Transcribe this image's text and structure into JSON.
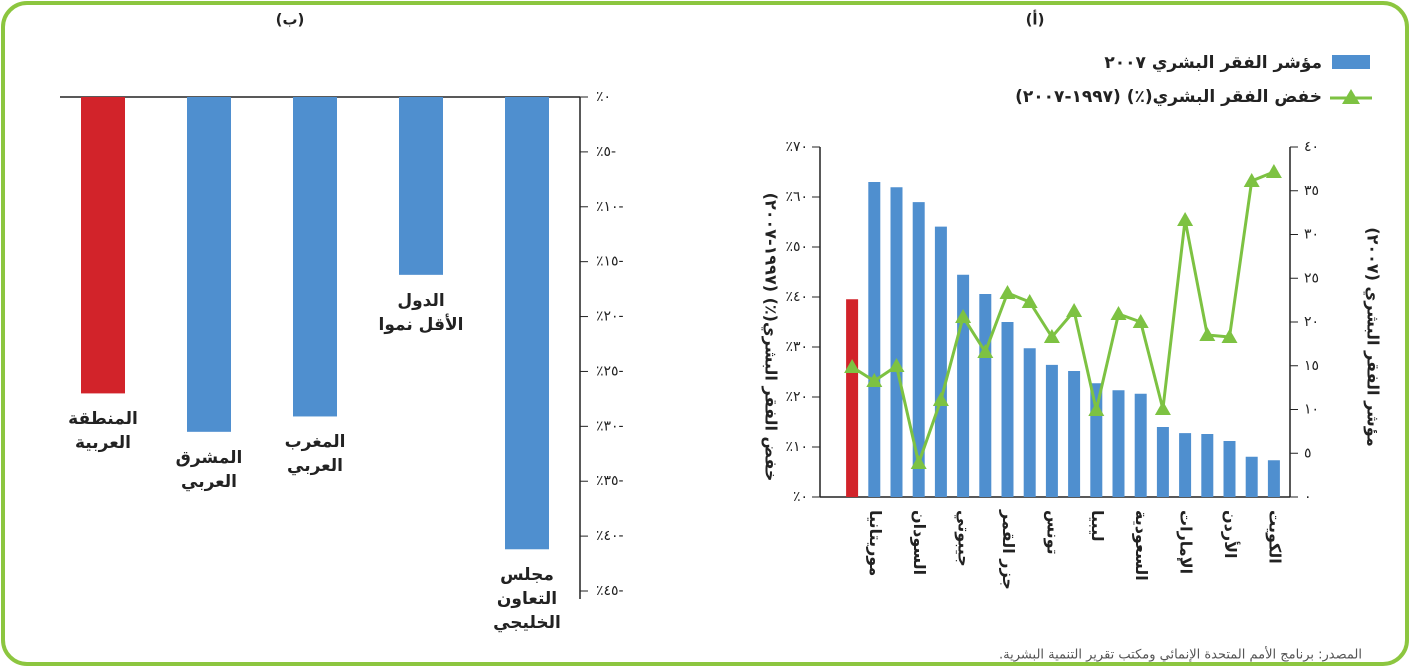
{
  "chart_data": [
    {
      "type": "bar",
      "label": "(ب)",
      "categories": [
        "المنطقة العربية",
        "المشرق العربي",
        "المغرب العربي",
        "الدول الأقل نموا",
        "مجلس التعاون الخليجي"
      ],
      "values": [
        -27,
        -30.5,
        -29.1,
        -16.2,
        -41.2
      ],
      "colors": [
        "#d2232a",
        "#4f8fcf",
        "#4f8fcf",
        "#4f8fcf",
        "#4f8fcf"
      ],
      "ylim": [
        -45,
        0
      ],
      "yticks": [
        {
          "value": 0,
          "label": "٪٠"
        },
        {
          "value": -5,
          "label": "٪٥-"
        },
        {
          "value": -10,
          "label": "٪١٠-"
        },
        {
          "value": -15,
          "label": "٪١٥-"
        },
        {
          "value": -20,
          "label": "٪٢٠-"
        },
        {
          "value": -25,
          "label": "٪٢٥-"
        },
        {
          "value": -30,
          "label": "٪٣٠-"
        },
        {
          "value": -35,
          "label": "٪٣٥-"
        },
        {
          "value": -40,
          "label": "٪٤٠-"
        },
        {
          "value": -45,
          "label": "٪٤٥-"
        }
      ]
    },
    {
      "type": "combo",
      "label": "(أ)",
      "categories": [
        null,
        "موريتانيا",
        null,
        "السودان",
        null,
        "جيبوتي",
        null,
        "جزر القمر",
        null,
        "تونس",
        null,
        "ليبيا",
        null,
        "السعودية",
        null,
        "الإمارات",
        null,
        "الأردن",
        null,
        "الكويت"
      ],
      "y_label": "خفض الفقر البشري(٪) (١٩٩٧-٢٠٠٧)",
      "y2_label": "مؤشر الفقر البشري (٢٠٠٧)",
      "ylim": [
        0,
        70
      ],
      "yticks": [
        {
          "value": 0,
          "label": "٪٠"
        },
        {
          "value": 10,
          "label": "٪١٠"
        },
        {
          "value": 20,
          "label": "٪٢٠"
        },
        {
          "value": 30,
          "label": "٪٣٠"
        },
        {
          "value": 40,
          "label": "٪٤٠"
        },
        {
          "value": 50,
          "label": "٪٥٠"
        },
        {
          "value": 60,
          "label": "٪٦٠"
        },
        {
          "value": 70,
          "label": "٪٧٠"
        }
      ],
      "y2lim": [
        0,
        40
      ],
      "y2ticks": [
        {
          "value": 0,
          "label": "٠"
        },
        {
          "value": 5,
          "label": "٥"
        },
        {
          "value": 10,
          "label": "١٠"
        },
        {
          "value": 15,
          "label": "١٥"
        },
        {
          "value": 20,
          "label": "٢٠"
        },
        {
          "value": 25,
          "label": "٢٥"
        },
        {
          "value": 30,
          "label": "٣٠"
        },
        {
          "value": 35,
          "label": "٣٥"
        },
        {
          "value": 40,
          "label": "٤٠"
        }
      ],
      "highlight_color": "#d2232a",
      "series": [
        {
          "name": "مؤشر الفقر البشري ٢٠٠٧",
          "type": "bar",
          "axis": "y2",
          "color": "#4f8fcf",
          "values": [
            22.6,
            36.0,
            35.4,
            33.7,
            30.9,
            25.4,
            23.2,
            20.0,
            17.0,
            15.1,
            14.4,
            13.0,
            12.2,
            11.8,
            8.0,
            7.3,
            7.2,
            6.4,
            4.6,
            4.2
          ]
        },
        {
          "name": "خفض الفقر البشري(٪) (١٩٩٧-٢٠٠٧)",
          "type": "line",
          "color": "#7dc242",
          "values": [
            26,
            23.2,
            26.2,
            6.8,
            19.4,
            36,
            29,
            40.8,
            39,
            32,
            37.2,
            17.4,
            36.6,
            35,
            17.6,
            55.4,
            32.4,
            32,
            63.2,
            65
          ]
        }
      ]
    }
  ],
  "source": "المصدر: برنامج الأمم المتحدة الإنمائي ومكتب تقرير التنمية البشرية."
}
